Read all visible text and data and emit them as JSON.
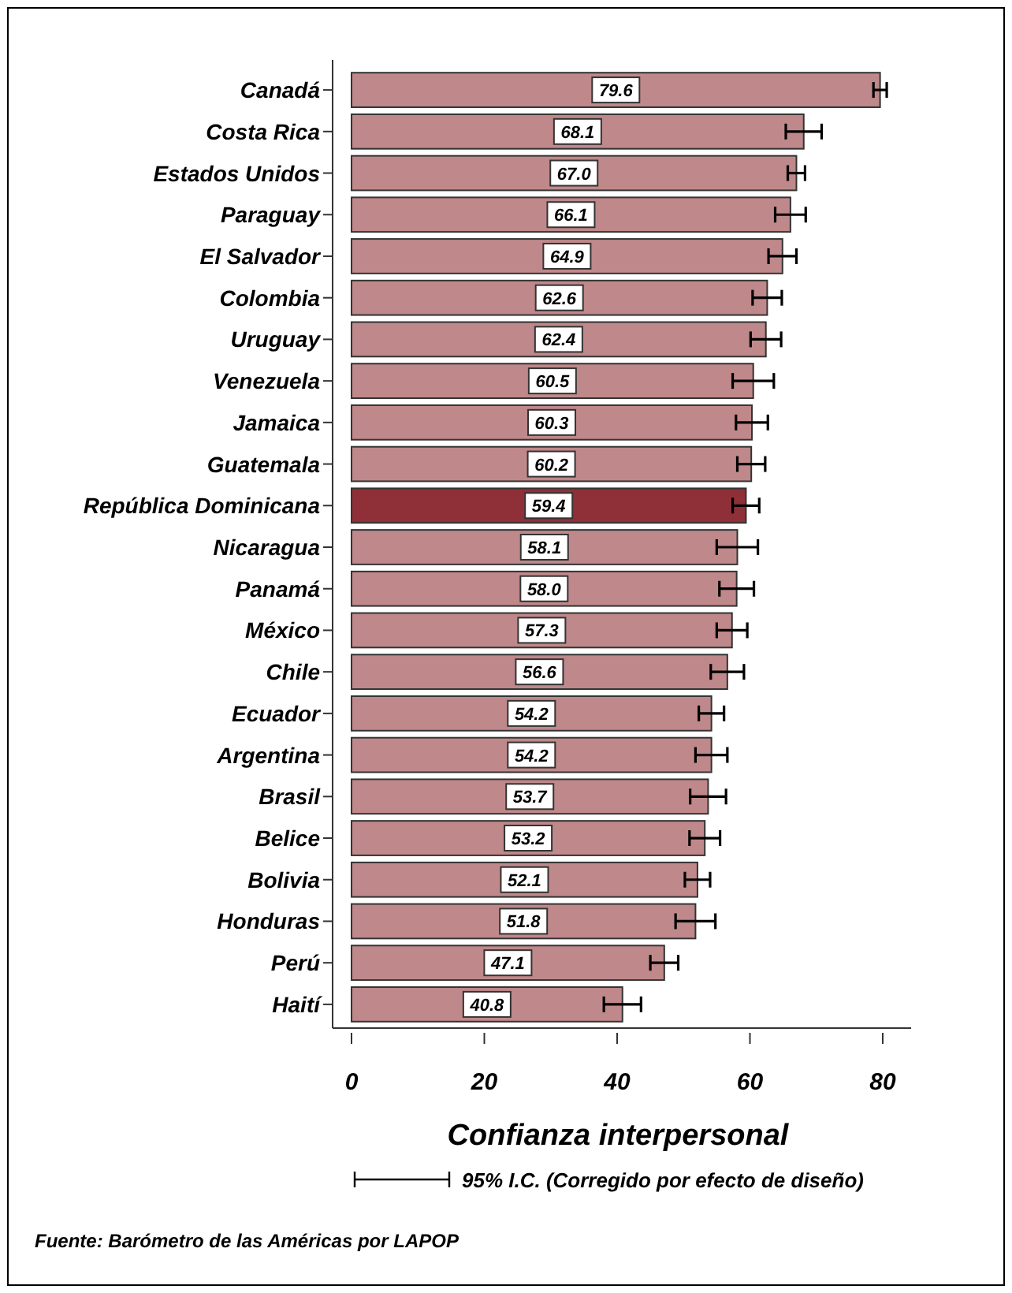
{
  "chart_data": {
    "type": "bar",
    "orientation": "horizontal",
    "xlabel": "Confianza interpersonal",
    "categories": [
      "Canadá",
      "Costa Rica",
      "Estados Unidos",
      "Paraguay",
      "El Salvador",
      "Colombia",
      "Uruguay",
      "Venezuela",
      "Jamaica",
      "Guatemala",
      "República Dominicana",
      "Nicaragua",
      "Panamá",
      "México",
      "Chile",
      "Ecuador",
      "Argentina",
      "Brasil",
      "Belice",
      "Bolivia",
      "Honduras",
      "Perú",
      "Haití"
    ],
    "values": [
      79.6,
      68.1,
      67.0,
      66.1,
      64.9,
      62.6,
      62.4,
      60.5,
      60.3,
      60.2,
      59.4,
      58.1,
      58.0,
      57.3,
      56.6,
      54.2,
      54.2,
      53.7,
      53.2,
      52.1,
      51.8,
      47.1,
      40.8
    ],
    "errors": [
      1.0,
      2.7,
      1.3,
      2.3,
      2.1,
      2.2,
      2.3,
      3.1,
      2.4,
      2.1,
      2.0,
      3.1,
      2.6,
      2.3,
      2.5,
      1.9,
      2.4,
      2.7,
      2.3,
      1.9,
      3.0,
      2.1,
      2.8
    ],
    "colors": [
      "#bf888a",
      "#bf888a",
      "#bf888a",
      "#bf888a",
      "#bf888a",
      "#bf888a",
      "#bf888a",
      "#bf888a",
      "#bf888a",
      "#bf888a",
      "#8f2f38",
      "#bf888a",
      "#bf888a",
      "#bf888a",
      "#bf888a",
      "#bf888a",
      "#bf888a",
      "#bf888a",
      "#bf888a",
      "#bf888a",
      "#bf888a",
      "#bf888a",
      "#bf888a"
    ],
    "value_labels": [
      "79.6",
      "68.1",
      "67.0",
      "66.1",
      "64.9",
      "62.6",
      "62.4",
      "60.5",
      "60.3",
      "60.2",
      "59.4",
      "58.1",
      "58.0",
      "57.3",
      "56.6",
      "54.2",
      "54.2",
      "53.7",
      "53.2",
      "52.1",
      "51.8",
      "47.1",
      "40.8"
    ],
    "xlim": [
      0,
      80
    ],
    "xticks": [
      0,
      20,
      40,
      60,
      80
    ],
    "annotations": [
      "95% I.C. (Corregido por efecto de diseño)",
      "Fuente: Barómetro de las Américas por LAPOP"
    ]
  }
}
